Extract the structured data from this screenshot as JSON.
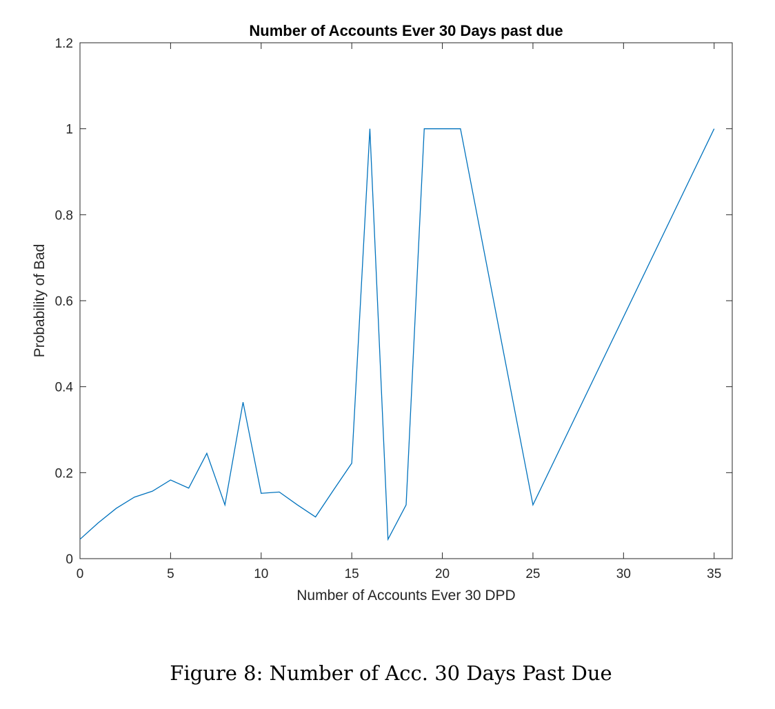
{
  "chart_data": {
    "type": "line",
    "title": "Number of Accounts Ever 30 Days past due",
    "xlabel": "Number of Accounts Ever 30 DPD",
    "ylabel": "Probability of Bad",
    "xlim": [
      0,
      36
    ],
    "ylim": [
      0,
      1.2
    ],
    "xticks": [
      0,
      5,
      10,
      15,
      20,
      25,
      30,
      35
    ],
    "yticks": [
      0,
      0.2,
      0.4,
      0.6,
      0.8,
      1,
      1.2
    ],
    "xtick_labels": [
      "0",
      "5",
      "10",
      "15",
      "20",
      "25",
      "30",
      "35"
    ],
    "ytick_labels": [
      "0",
      "0.2",
      "0.4",
      "0.6",
      "0.8",
      "1",
      "1.2"
    ],
    "grid": false,
    "line_color": "#0072BD",
    "series": [
      {
        "x": [
          0,
          1,
          2,
          3,
          4,
          5,
          6,
          7,
          8,
          9,
          10,
          11,
          12,
          13,
          14,
          15,
          16,
          17,
          18,
          19,
          20,
          21,
          25,
          35
        ],
        "y": [
          0.045,
          0.083,
          0.117,
          0.143,
          0.157,
          0.183,
          0.164,
          0.245,
          0.125,
          0.364,
          0.152,
          0.155,
          0.125,
          0.097,
          0.16,
          0.222,
          1.0,
          0.045,
          0.125,
          1.0,
          1.0,
          1.0,
          0.125,
          1.0
        ]
      }
    ]
  },
  "caption": "Figure 8: Number of Acc. 30 Days Past Due"
}
